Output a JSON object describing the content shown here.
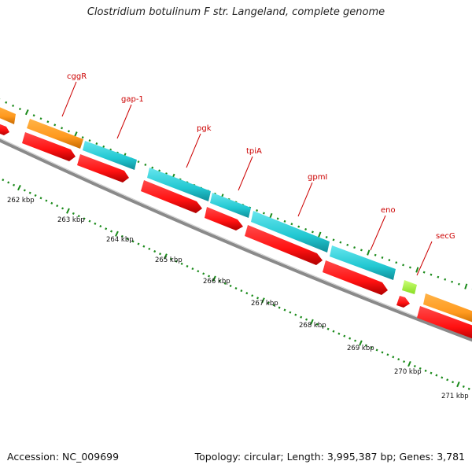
{
  "title": "Clostridium botulinum F str. Langeland, complete genome",
  "footer": {
    "accession": "Accession: NC_009699",
    "summary": "Topology: circular; Length: 3,995,387 bp; Genes: 3,781"
  },
  "colors": {
    "orange": "#ff9a1f",
    "cyan": "#22c8d2",
    "lime": "#aaff33",
    "red": "#ff1111",
    "backbone": "#8a8a8a",
    "tick": "#1a8a1a",
    "label": "#cc0000"
  },
  "gene_labels": [
    "cggR",
    "gap-1",
    "pgk",
    "tpiA",
    "gpmI",
    "eno",
    "secG"
  ],
  "kbp_labels": [
    "262 kbp",
    "263 kbp",
    "264 kbp",
    "265 kbp",
    "266 kbp",
    "267 kbp",
    "268 kbp",
    "269 kbp",
    "270 kbp",
    "271 kbp"
  ]
}
